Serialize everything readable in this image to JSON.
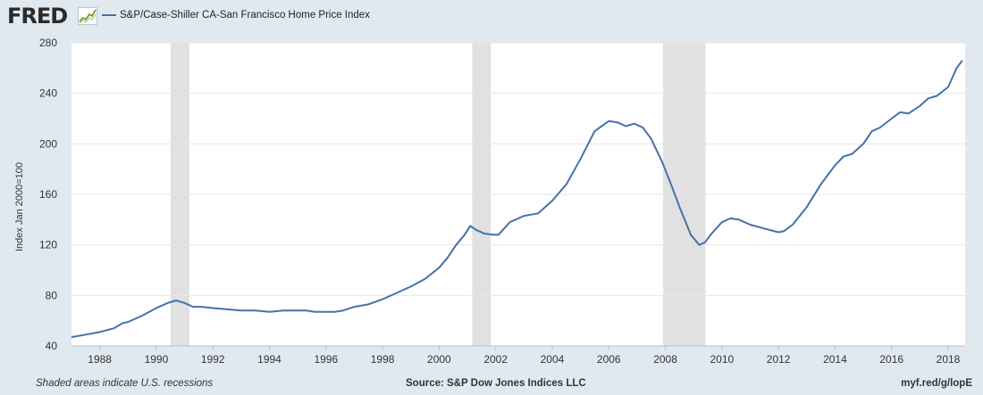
{
  "header": {
    "logo_text": "FRED",
    "logo_icon": "fred-chart-icon"
  },
  "footer": {
    "recession_note": "Shaded areas indicate U.S. recessions",
    "source": "Source: S&P Dow Jones Indices LLC",
    "short_url": "myf.red/g/lopE"
  },
  "colors": {
    "background": "#e1e9f0",
    "plot_background": "#ffffff",
    "series": "#4572a7",
    "recession": "#e1e1e1",
    "grid": "#e6e6e6"
  },
  "chart_data": {
    "type": "line",
    "title": "",
    "xlabel": "",
    "ylabel": "Index Jan 2000=100",
    "xlim": [
      1987.0,
      2018.6
    ],
    "ylim": [
      40,
      280
    ],
    "yticks": [
      40,
      80,
      120,
      160,
      200,
      240,
      280
    ],
    "xticks": [
      1988,
      1990,
      1992,
      1994,
      1996,
      1998,
      2000,
      2002,
      2004,
      2006,
      2008,
      2010,
      2012,
      2014,
      2016,
      2018
    ],
    "grid": true,
    "legend_position": "top-left",
    "recessions": [
      [
        1990.5,
        1991.17
      ],
      [
        2001.17,
        2001.83
      ],
      [
        2007.92,
        2009.42
      ]
    ],
    "series": [
      {
        "name": "S&P/Case-Shiller CA-San Francisco Home Price Index",
        "x": [
          1987.0,
          1987.5,
          1988.0,
          1988.5,
          1988.8,
          1989.0,
          1989.5,
          1990.0,
          1990.4,
          1990.7,
          1991.0,
          1991.3,
          1991.6,
          1992.0,
          1992.5,
          1993.0,
          1993.5,
          1994.0,
          1994.5,
          1995.0,
          1995.3,
          1995.6,
          1996.0,
          1996.3,
          1996.6,
          1997.0,
          1997.5,
          1998.0,
          1998.5,
          1999.0,
          1999.5,
          2000.0,
          2000.3,
          2000.6,
          2000.9,
          2001.1,
          2001.3,
          2001.6,
          2001.9,
          2002.1,
          2002.5,
          2003.0,
          2003.5,
          2004.0,
          2004.5,
          2005.0,
          2005.5,
          2006.0,
          2006.3,
          2006.6,
          2006.9,
          2007.2,
          2007.5,
          2007.9,
          2008.2,
          2008.5,
          2008.9,
          2009.2,
          2009.4,
          2009.6,
          2010.0,
          2010.3,
          2010.6,
          2011.0,
          2011.5,
          2012.0,
          2012.2,
          2012.5,
          2013.0,
          2013.5,
          2014.0,
          2014.3,
          2014.6,
          2015.0,
          2015.3,
          2015.6,
          2016.0,
          2016.3,
          2016.6,
          2017.0,
          2017.3,
          2017.6,
          2018.0,
          2018.3,
          2018.5
        ],
        "values": [
          47,
          49,
          51,
          54,
          58,
          59,
          64,
          70,
          74,
          76,
          74,
          71,
          71,
          70,
          69,
          68,
          68,
          67,
          68,
          68,
          68,
          67,
          67,
          67,
          68,
          71,
          73,
          77,
          82,
          87,
          93,
          102,
          110,
          120,
          128,
          135,
          132,
          129,
          128,
          128,
          138,
          143,
          145,
          155,
          168,
          188,
          210,
          218,
          217,
          214,
          216,
          213,
          204,
          185,
          168,
          150,
          128,
          120,
          122,
          128,
          138,
          141,
          140,
          136,
          133,
          130,
          131,
          136,
          150,
          168,
          183,
          190,
          192,
          200,
          210,
          213,
          220,
          225,
          224,
          230,
          236,
          238,
          245,
          260,
          266
        ]
      }
    ]
  }
}
